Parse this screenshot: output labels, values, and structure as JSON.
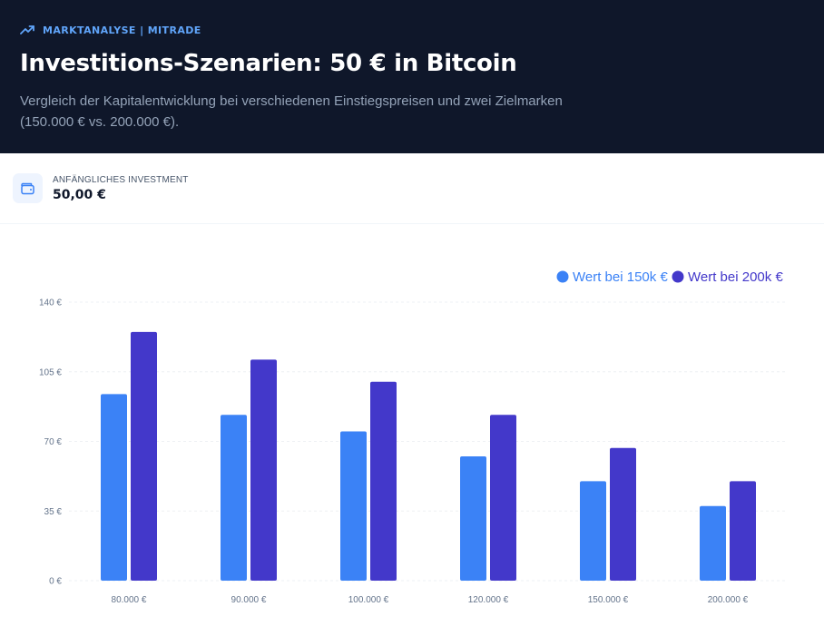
{
  "header": {
    "eyebrow": "MARKTANALYSE | MITRADE",
    "title": "Investitions-Szenarien: 50 € in Bitcoin",
    "subtitle": "Vergleich der Kapitalentwicklung bei verschiedenen Einstiegspreisen und zwei Zielmarken (150.000 € vs. 200.000 €)."
  },
  "stat": {
    "label": "ANFÄNGLICHES INVESTMENT",
    "value": "50,00 €",
    "icon": "wallet-icon"
  },
  "colors": {
    "header_bg": "#0f172a",
    "accent": "#60a5fa",
    "series_150k": "#3b82f6",
    "series_200k": "#4338ca"
  },
  "chart_data": {
    "type": "bar",
    "title": "",
    "xlabel": "",
    "ylabel": "",
    "categories": [
      "80.000 €",
      "90.000 €",
      "100.000 €",
      "120.000 €",
      "150.000 €",
      "200.000 €"
    ],
    "series": [
      {
        "name": "Wert bei 150k €",
        "color": "#3b82f6",
        "values": [
          93.75,
          83.33,
          75.0,
          62.5,
          50.0,
          37.5
        ]
      },
      {
        "name": "Wert bei 200k €",
        "color": "#4338ca",
        "values": [
          125.0,
          111.11,
          100.0,
          83.33,
          66.67,
          50.0
        ]
      }
    ],
    "yticks": [
      "0 €",
      "35 €",
      "70 €",
      "105 €",
      "140 €"
    ],
    "ytick_values": [
      0,
      35,
      70,
      105,
      140
    ],
    "ylim": [
      0,
      140
    ],
    "grid": true,
    "legend_position": "top-right"
  }
}
